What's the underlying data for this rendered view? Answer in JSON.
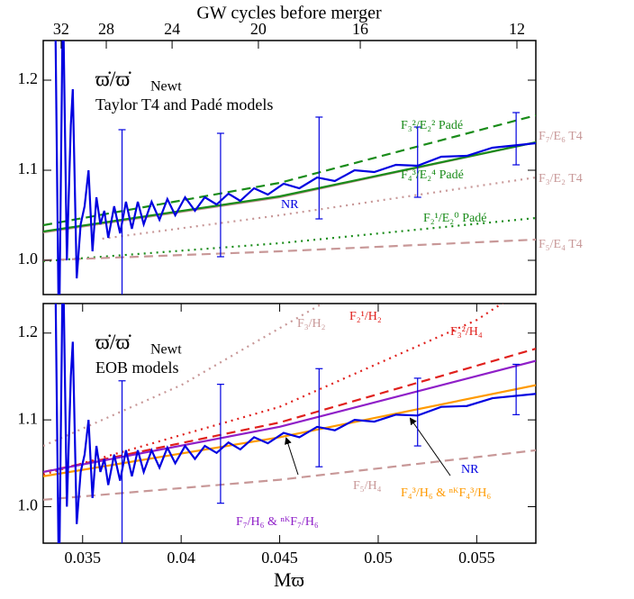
{
  "chart_data": [
    {
      "type": "line",
      "top_axis_label": "GW cycles before merger",
      "top_xticks": [
        {
          "value": 0.03391,
          "label": "32"
        },
        {
          "value": 0.0362,
          "label": "28"
        },
        {
          "value": 0.03954,
          "label": "24"
        },
        {
          "value": 0.04392,
          "label": "20"
        },
        {
          "value": 0.04909,
          "label": "16"
        },
        {
          "value": 0.05704,
          "label": "12"
        }
      ],
      "panel_symbol": "ϖ̇/ϖ̇",
      "panel_symbol_sub": "Newt",
      "panel_label": "Taylor T4 and Padé models",
      "xlim": [
        0.033,
        0.058
      ],
      "ylim": [
        0.962,
        1.244
      ],
      "yticks": [
        {
          "value": 1,
          "label": "1.0"
        },
        1.1,
        1.2
      ],
      "series": [
        {
          "name": "F₇/E₆ T4",
          "color": "#c89898",
          "style": "solid",
          "x": [
            0.033,
            0.045,
            0.058
          ],
          "values": [
            1.031,
            1.07,
            1.131
          ]
        },
        {
          "name": "F₃²/E₂² Padé",
          "color": "#1a8c1a",
          "style": "dashed",
          "x": [
            0.033,
            0.045,
            0.058
          ],
          "values": [
            1.039,
            1.086,
            1.161
          ]
        },
        {
          "name": "F₄³/E₂⁴ Padé",
          "color": "#1a8c1a",
          "style": "solid",
          "x": [
            0.033,
            0.045,
            0.058
          ],
          "values": [
            1.032,
            1.071,
            1.131
          ]
        },
        {
          "name": "F₃/E₂ T4",
          "color": "#c89898",
          "style": "dotted",
          "x": [
            0.036,
            0.045,
            0.058
          ],
          "values": [
            1.024,
            1.05,
            1.092
          ]
        },
        {
          "name": "F₂¹/E₂⁰ Padé",
          "color": "#1a8c1a",
          "style": "dotted",
          "x": [
            0.033,
            0.045,
            0.058
          ],
          "values": [
            0.999,
            1.019,
            1.047
          ]
        },
        {
          "name": "F₅/E₄ T4",
          "color": "#c89898",
          "style": "dashed",
          "x": [
            0.033,
            0.045,
            0.058
          ],
          "values": [
            1.0,
            1.01,
            1.023
          ]
        },
        {
          "name": "NR",
          "color": "#0000e0",
          "style": "solid",
          "x": [
            0.0336,
            0.0338,
            0.034,
            0.0342,
            0.0344,
            0.0345,
            0.0347,
            0.0349,
            0.0351,
            0.0353,
            0.0355,
            0.0357,
            0.0359,
            0.0361,
            0.0363,
            0.0366,
            0.0369,
            0.0372,
            0.0375,
            0.0378,
            0.0381,
            0.0385,
            0.0389,
            0.0393,
            0.0397,
            0.0402,
            0.0407,
            0.0412,
            0.0418,
            0.0424,
            0.043,
            0.0437,
            0.0444,
            0.0452,
            0.046,
            0.0469,
            0.0478,
            0.0488,
            0.0498,
            0.0509,
            0.052,
            0.0532,
            0.0545,
            0.0558,
            0.058
          ],
          "values": [
            1.3,
            0.9,
            1.3,
            1.0,
            1.15,
            1.19,
            0.98,
            1.04,
            1.06,
            1.1,
            1.01,
            1.07,
            1.04,
            1.055,
            1.025,
            1.06,
            1.03,
            1.065,
            1.035,
            1.065,
            1.04,
            1.065,
            1.045,
            1.068,
            1.05,
            1.07,
            1.055,
            1.07,
            1.062,
            1.074,
            1.066,
            1.08,
            1.073,
            1.085,
            1.08,
            1.092,
            1.088,
            1.1,
            1.098,
            1.106,
            1.105,
            1.115,
            1.116,
            1.125,
            1.13
          ]
        }
      ],
      "errorbars": {
        "color": "#0000e0",
        "x": [
          0.037,
          0.042,
          0.047,
          0.052,
          0.057
        ],
        "values": [
          1.045,
          1.0725,
          1.1025,
          1.109,
          1.135
        ],
        "errors": [
          0.1,
          0.0685,
          0.0565,
          0.039,
          0.029
        ]
      }
    },
    {
      "type": "line",
      "panel_symbol": "ϖ̇/ϖ̇",
      "panel_symbol_sub": "Newt",
      "panel_label": "EOB models",
      "xlabel": "Mϖ",
      "xlim": [
        0.033,
        0.058
      ],
      "ylim": [
        0.958,
        1.234
      ],
      "xticks": [
        0.035,
        0.04,
        0.045,
        0.05,
        0.055
      ],
      "yticks": [
        {
          "value": 1,
          "label": "1.0"
        },
        1.1,
        1.2
      ],
      "series": [
        {
          "name": "F₃/H₂",
          "color": "#c89898",
          "style": "dotted",
          "x": [
            0.033,
            0.04,
            0.048
          ],
          "values": [
            1.07,
            1.14,
            1.245
          ]
        },
        {
          "name": "F₂¹/H₂",
          "color": "#e0201c",
          "style": "dotted",
          "x": [
            0.033,
            0.045,
            0.055,
            0.058
          ],
          "values": [
            1.037,
            1.115,
            1.215,
            1.26
          ]
        },
        {
          "name": "F₃²/H₄",
          "color": "#e0201c",
          "style": "dashed",
          "x": [
            0.033,
            0.045,
            0.058
          ],
          "values": [
            1.04,
            1.097,
            1.182
          ]
        },
        {
          "name": "F₇/H₆ & ⁿᴷF₇/H₆",
          "color": "#8f1fc8",
          "style": "solid",
          "x": [
            0.033,
            0.045,
            0.058
          ],
          "values": [
            1.04,
            1.092,
            1.168
          ]
        },
        {
          "name": "F₄³/H₆ & ⁿᴷF₄³/H₆",
          "color": "#ff9a00",
          "style": "solid",
          "x": [
            0.033,
            0.045,
            0.058
          ],
          "values": [
            1.035,
            1.08,
            1.14
          ]
        },
        {
          "name": "F₅/H₄",
          "color": "#c89898",
          "style": "dashed",
          "x": [
            0.033,
            0.045,
            0.058
          ],
          "values": [
            1.008,
            1.031,
            1.065
          ]
        },
        {
          "name": "NR",
          "color": "#0000e0",
          "style": "solid",
          "x": [
            0.0336,
            0.0338,
            0.034,
            0.0342,
            0.0344,
            0.0345,
            0.0347,
            0.0349,
            0.0351,
            0.0353,
            0.0355,
            0.0357,
            0.0359,
            0.0361,
            0.0363,
            0.0366,
            0.0369,
            0.0372,
            0.0375,
            0.0378,
            0.0381,
            0.0385,
            0.0389,
            0.0393,
            0.0397,
            0.0402,
            0.0407,
            0.0412,
            0.0418,
            0.0424,
            0.043,
            0.0437,
            0.0444,
            0.0452,
            0.046,
            0.0469,
            0.0478,
            0.0488,
            0.0498,
            0.0509,
            0.052,
            0.0532,
            0.0545,
            0.0558,
            0.058
          ],
          "values": [
            1.3,
            0.9,
            1.3,
            1.0,
            1.15,
            1.19,
            0.98,
            1.04,
            1.06,
            1.1,
            1.01,
            1.07,
            1.04,
            1.055,
            1.025,
            1.06,
            1.03,
            1.065,
            1.035,
            1.065,
            1.04,
            1.065,
            1.045,
            1.068,
            1.05,
            1.07,
            1.055,
            1.07,
            1.062,
            1.074,
            1.066,
            1.08,
            1.073,
            1.085,
            1.08,
            1.092,
            1.088,
            1.1,
            1.098,
            1.106,
            1.105,
            1.115,
            1.116,
            1.125,
            1.13
          ]
        }
      ],
      "errorbars": {
        "color": "#0000e0",
        "x": [
          0.037,
          0.042,
          0.047,
          0.052,
          0.057
        ],
        "values": [
          1.045,
          1.0725,
          1.1025,
          1.109,
          1.135
        ],
        "errors": [
          0.1,
          0.0685,
          0.0565,
          0.039,
          0.029
        ]
      }
    }
  ]
}
